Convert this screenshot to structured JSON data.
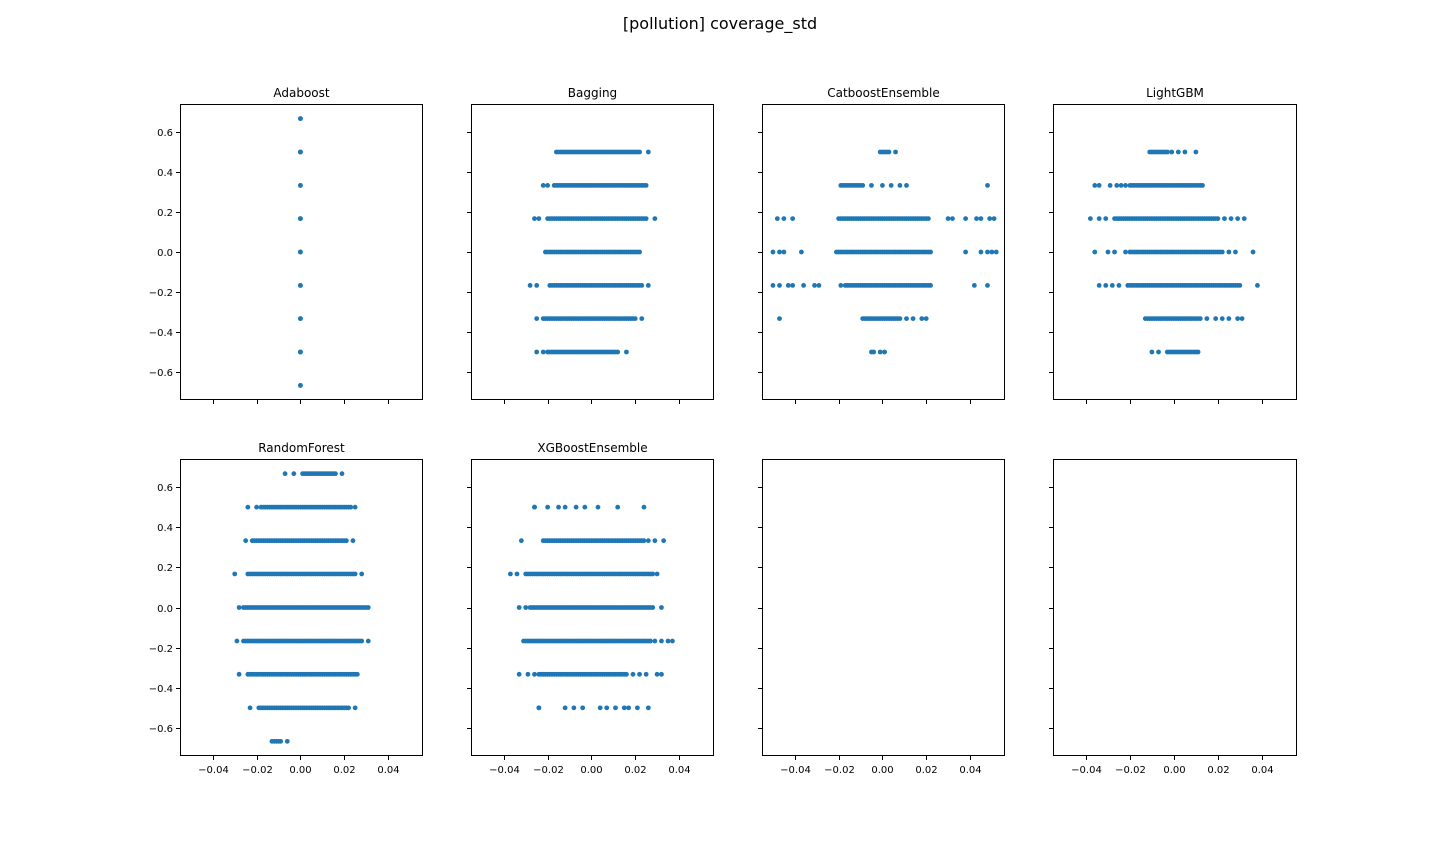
{
  "figure": {
    "suptitle": "[pollution] coverage_std"
  },
  "chart_data": [
    {
      "type": "scatter",
      "title": "Adaboost",
      "xlabel": "",
      "ylabel": "",
      "xlim": [
        -0.055,
        0.056
      ],
      "ylim": [
        -0.74,
        0.74
      ],
      "xticks": [
        "−0.04",
        "−0.02",
        "0.00",
        "0.02",
        "0.04"
      ],
      "yticks": [
        "−0.6",
        "−0.4",
        "−0.2",
        "0.0",
        "0.2",
        "0.4",
        "0.6"
      ],
      "rows": [
        {
          "y": 0.667,
          "x_min": 0.0,
          "x_max": 0.0,
          "isolated": []
        },
        {
          "y": 0.5,
          "x_min": 0.0,
          "x_max": 0.0,
          "isolated": []
        },
        {
          "y": 0.333,
          "x_min": 0.0,
          "x_max": 0.0,
          "isolated": []
        },
        {
          "y": 0.167,
          "x_min": 0.0,
          "x_max": 0.0,
          "isolated": []
        },
        {
          "y": 0.0,
          "x_min": 0.0,
          "x_max": 0.0,
          "isolated": []
        },
        {
          "y": -0.167,
          "x_min": 0.0,
          "x_max": 0.0,
          "isolated": []
        },
        {
          "y": -0.333,
          "x_min": 0.0,
          "x_max": 0.0,
          "isolated": []
        },
        {
          "y": -0.5,
          "x_min": 0.0,
          "x_max": 0.0,
          "isolated": []
        },
        {
          "y": -0.667,
          "x_min": 0.0,
          "x_max": 0.0,
          "isolated": []
        }
      ]
    },
    {
      "type": "scatter",
      "title": "Bagging",
      "xlabel": "",
      "ylabel": "",
      "xlim": [
        -0.055,
        0.056
      ],
      "ylim": [
        -0.74,
        0.74
      ],
      "xticks": [
        "−0.04",
        "−0.02",
        "0.00",
        "0.02",
        "0.04"
      ],
      "yticks": [
        "−0.6",
        "−0.4",
        "−0.2",
        "0.0",
        "0.2",
        "0.4",
        "0.6"
      ],
      "rows": [
        {
          "y": 0.5,
          "x_min": -0.015,
          "x_max": 0.022,
          "isolated": [
            -0.016,
            0.026
          ]
        },
        {
          "y": 0.333,
          "x_min": -0.017,
          "x_max": 0.025,
          "isolated": [
            -0.022,
            -0.02
          ]
        },
        {
          "y": 0.167,
          "x_min": -0.02,
          "x_max": 0.025,
          "isolated": [
            -0.026,
            -0.024,
            0.029
          ]
        },
        {
          "y": 0.0,
          "x_min": -0.021,
          "x_max": 0.022,
          "isolated": []
        },
        {
          "y": -0.167,
          "x_min": -0.019,
          "x_max": 0.023,
          "isolated": [
            -0.028,
            -0.025,
            0.026
          ]
        },
        {
          "y": -0.333,
          "x_min": -0.022,
          "x_max": 0.02,
          "isolated": [
            -0.025,
            0.023
          ]
        },
        {
          "y": -0.5,
          "x_min": -0.02,
          "x_max": 0.012,
          "isolated": [
            -0.025,
            -0.022,
            0.016
          ]
        }
      ]
    },
    {
      "type": "scatter",
      "title": "CatboostEnsemble",
      "xlabel": "",
      "ylabel": "",
      "xlim": [
        -0.055,
        0.056
      ],
      "ylim": [
        -0.74,
        0.74
      ],
      "xticks": [
        "−0.04",
        "−0.02",
        "0.00",
        "0.02",
        "0.04"
      ],
      "yticks": [
        "−0.6",
        "−0.4",
        "−0.2",
        "0.0",
        "0.2",
        "0.4",
        "0.6"
      ],
      "rows": [
        {
          "y": 0.5,
          "x_min": -0.001,
          "x_max": 0.003,
          "isolated": [
            0.006
          ]
        },
        {
          "y": 0.333,
          "x_min": -0.019,
          "x_max": -0.009,
          "isolated": [
            -0.005,
            0.0,
            0.004,
            0.008,
            0.011,
            0.048
          ]
        },
        {
          "y": 0.167,
          "x_min": -0.02,
          "x_max": 0.021,
          "isolated": [
            -0.048,
            -0.045,
            -0.041,
            0.03,
            0.032,
            0.038,
            0.043,
            0.045,
            0.049,
            0.051
          ]
        },
        {
          "y": 0.0,
          "x_min": -0.021,
          "x_max": 0.022,
          "isolated": [
            -0.05,
            -0.047,
            -0.045,
            -0.037,
            0.038,
            0.045,
            0.048,
            0.05,
            0.052
          ]
        },
        {
          "y": -0.167,
          "x_min": -0.017,
          "x_max": 0.022,
          "isolated": [
            -0.05,
            -0.047,
            -0.043,
            -0.041,
            -0.036,
            -0.031,
            -0.029,
            -0.019,
            0.042,
            0.048
          ]
        },
        {
          "y": -0.333,
          "x_min": -0.009,
          "x_max": 0.008,
          "isolated": [
            -0.047,
            0.011,
            0.014,
            0.018,
            0.02
          ]
        },
        {
          "y": -0.5,
          "x_min": -0.005,
          "x_max": -0.004,
          "isolated": [
            -0.001,
            0.001
          ]
        }
      ]
    },
    {
      "type": "scatter",
      "title": "LightGBM",
      "xlabel": "",
      "ylabel": "",
      "xlim": [
        -0.055,
        0.056
      ],
      "ylim": [
        -0.74,
        0.74
      ],
      "xticks": [
        "−0.04",
        "−0.02",
        "0.00",
        "0.02",
        "0.04"
      ],
      "yticks": [
        "−0.6",
        "−0.4",
        "−0.2",
        "0.0",
        "0.2",
        "0.4",
        "0.6"
      ],
      "rows": [
        {
          "y": 0.5,
          "x_min": -0.011,
          "x_max": -0.003,
          "isolated": [
            -0.001,
            0.002,
            0.005,
            0.01
          ]
        },
        {
          "y": 0.333,
          "x_min": -0.02,
          "x_max": 0.013,
          "isolated": [
            -0.036,
            -0.034,
            -0.029,
            -0.026,
            -0.024,
            -0.022
          ]
        },
        {
          "y": 0.167,
          "x_min": -0.027,
          "x_max": 0.02,
          "isolated": [
            -0.038,
            -0.034,
            -0.031,
            0.023,
            0.026,
            0.029,
            0.032
          ]
        },
        {
          "y": 0.0,
          "x_min": -0.02,
          "x_max": 0.022,
          "isolated": [
            -0.036,
            -0.03,
            -0.027,
            -0.022,
            0.025,
            0.028,
            0.036
          ]
        },
        {
          "y": -0.167,
          "x_min": -0.021,
          "x_max": 0.03,
          "isolated": [
            -0.034,
            -0.031,
            -0.028,
            -0.025,
            0.038
          ]
        },
        {
          "y": -0.333,
          "x_min": -0.013,
          "x_max": 0.012,
          "isolated": [
            0.015,
            0.019,
            0.022,
            0.025,
            0.029,
            0.031
          ]
        },
        {
          "y": -0.5,
          "x_min": -0.003,
          "x_max": 0.011,
          "isolated": [
            -0.01,
            -0.007
          ]
        }
      ]
    },
    {
      "type": "scatter",
      "title": "RandomForest",
      "xlabel": "",
      "ylabel": "",
      "xlim": [
        -0.055,
        0.056
      ],
      "ylim": [
        -0.74,
        0.74
      ],
      "xticks": [
        "−0.04",
        "−0.02",
        "0.00",
        "0.02",
        "0.04"
      ],
      "yticks": [
        "−0.6",
        "−0.4",
        "−0.2",
        "0.0",
        "0.2",
        "0.4",
        "0.6"
      ],
      "rows": [
        {
          "y": 0.667,
          "x_min": 0.001,
          "x_max": 0.016,
          "isolated": [
            -0.007,
            -0.003,
            0.019
          ]
        },
        {
          "y": 0.5,
          "x_min": -0.018,
          "x_max": 0.023,
          "isolated": [
            -0.024,
            -0.02,
            0.025
          ]
        },
        {
          "y": 0.333,
          "x_min": -0.022,
          "x_max": 0.021,
          "isolated": [
            -0.025,
            0.024
          ]
        },
        {
          "y": 0.167,
          "x_min": -0.024,
          "x_max": 0.025,
          "isolated": [
            -0.03,
            0.028
          ]
        },
        {
          "y": 0.0,
          "x_min": -0.026,
          "x_max": 0.031,
          "isolated": [
            -0.028
          ]
        },
        {
          "y": -0.167,
          "x_min": -0.026,
          "x_max": 0.028,
          "isolated": [
            -0.029,
            0.031
          ]
        },
        {
          "y": -0.333,
          "x_min": -0.024,
          "x_max": 0.026,
          "isolated": [
            -0.028
          ]
        },
        {
          "y": -0.5,
          "x_min": -0.019,
          "x_max": 0.022,
          "isolated": [
            -0.023,
            0.025
          ]
        },
        {
          "y": -0.667,
          "x_min": -0.013,
          "x_max": -0.009,
          "isolated": [
            -0.006
          ]
        }
      ]
    },
    {
      "type": "scatter",
      "title": "XGBoostEnsemble",
      "xlabel": "",
      "ylabel": "",
      "xlim": [
        -0.055,
        0.056
      ],
      "ylim": [
        -0.74,
        0.74
      ],
      "xticks": [
        "−0.04",
        "−0.02",
        "0.00",
        "0.02",
        "0.04"
      ],
      "yticks": [
        "−0.6",
        "−0.4",
        "−0.2",
        "0.0",
        "0.2",
        "0.4",
        "0.6"
      ],
      "rows": [
        {
          "y": 0.5,
          "x_min": -0.026,
          "x_max": -0.026,
          "isolated": [
            -0.02,
            -0.015,
            -0.012,
            -0.007,
            -0.003,
            0.003,
            0.012,
            0.024
          ]
        },
        {
          "y": 0.333,
          "x_min": -0.021,
          "x_max": 0.024,
          "isolated": [
            -0.032,
            -0.022,
            0.026,
            0.029,
            0.033
          ]
        },
        {
          "y": 0.167,
          "x_min": -0.03,
          "x_max": 0.028,
          "isolated": [
            -0.037,
            -0.034,
            0.03
          ]
        },
        {
          "y": 0.0,
          "x_min": -0.028,
          "x_max": 0.028,
          "isolated": [
            -0.033,
            -0.03,
            0.032
          ]
        },
        {
          "y": -0.167,
          "x_min": -0.03,
          "x_max": 0.027,
          "isolated": [
            -0.031,
            0.029,
            0.032,
            0.035,
            0.037
          ]
        },
        {
          "y": -0.333,
          "x_min": -0.024,
          "x_max": 0.016,
          "isolated": [
            -0.033,
            -0.029,
            -0.026,
            0.019,
            0.022,
            0.025,
            0.03,
            0.032
          ]
        },
        {
          "y": -0.5,
          "x_min": -0.024,
          "x_max": -0.024,
          "isolated": [
            -0.012,
            -0.008,
            -0.004,
            0.004,
            0.007,
            0.011,
            0.015,
            0.017,
            0.021,
            0.026
          ]
        }
      ]
    },
    {
      "type": "scatter",
      "title": "",
      "xlabel": "",
      "ylabel": "",
      "xlim": [
        -0.055,
        0.056
      ],
      "ylim": [
        -0.74,
        0.74
      ],
      "xticks": [
        "−0.04",
        "−0.02",
        "0.00",
        "0.02",
        "0.04"
      ],
      "yticks": [],
      "rows": []
    },
    {
      "type": "scatter",
      "title": "",
      "xlabel": "",
      "ylabel": "",
      "xlim": [
        -0.055,
        0.056
      ],
      "ylim": [
        -0.74,
        0.74
      ],
      "xticks": [
        "−0.04",
        "−0.02",
        "0.00",
        "0.02",
        "0.04"
      ],
      "yticks": [],
      "rows": []
    }
  ],
  "style": {
    "marker_color": "#1f77b4",
    "grid": false,
    "sharex": true,
    "sharey": true
  }
}
